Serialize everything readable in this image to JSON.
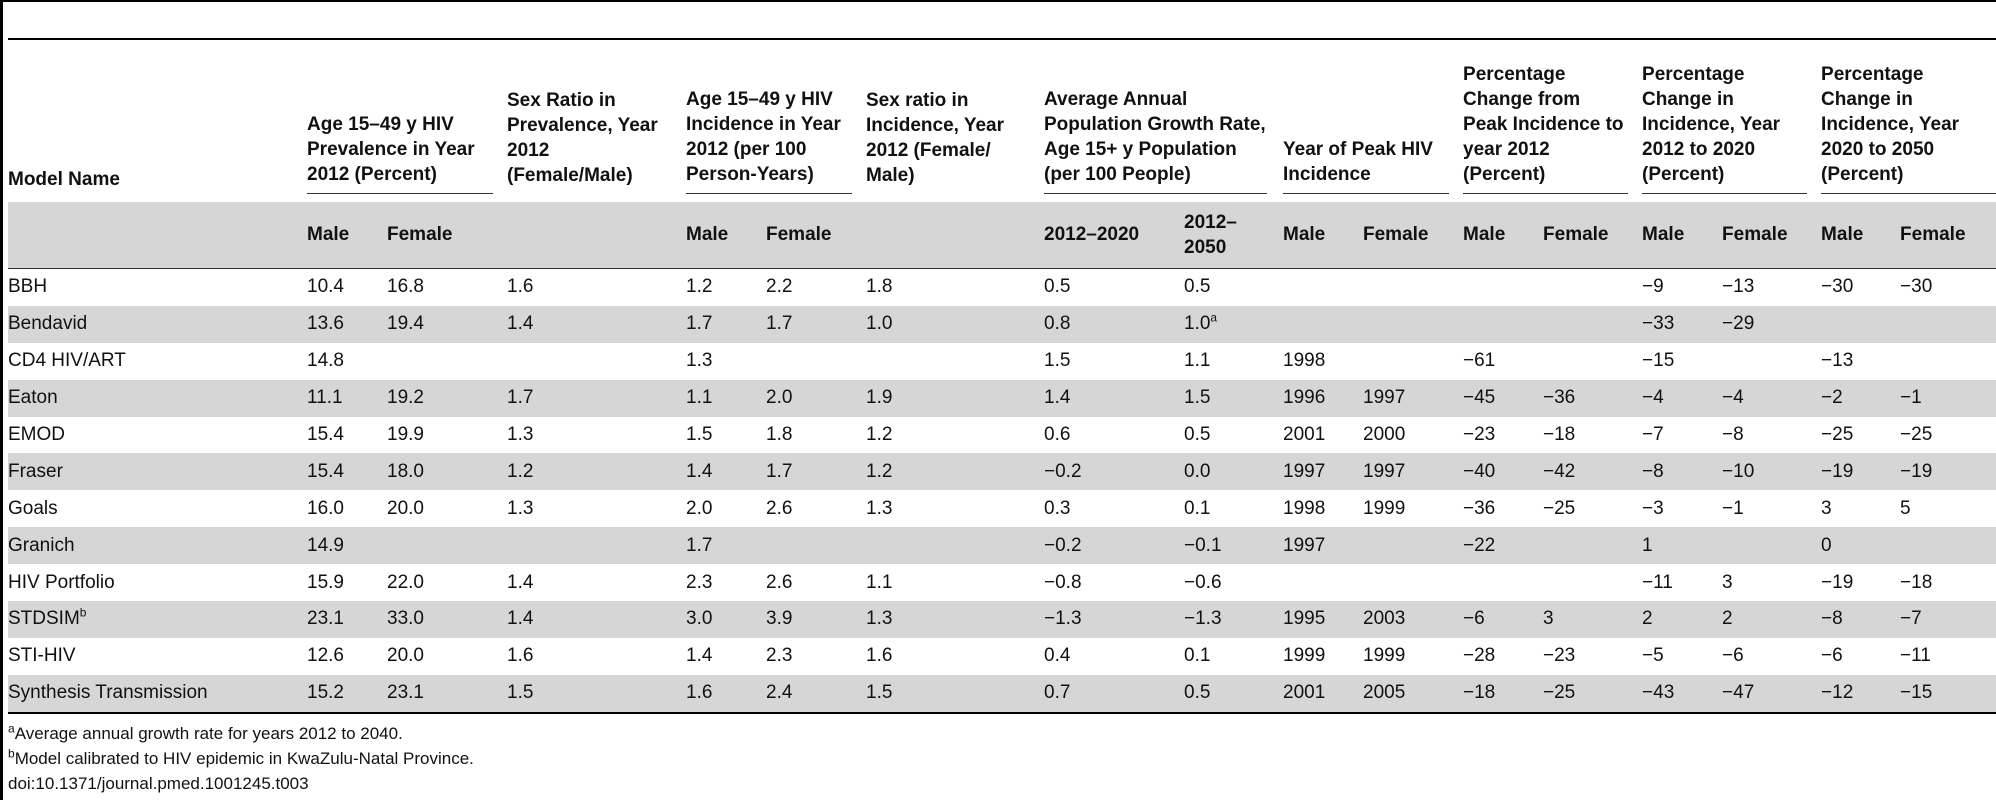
{
  "header": {
    "model_name": "Model Name",
    "prevalence": "Age 15–49 y HIV Prevalence in Year 2012 (Percent)",
    "sex_ratio_prev": "Sex Ratio in Prevalence, Year 2012 (Female/Male)",
    "incidence": "Age 15–49 y HIV Incidence in Year 2012 (per 100 Person-Years)",
    "sex_ratio_inc": "Sex ratio in Incidence, Year 2012 (Female/ Male)",
    "growth": "Average Annual Population Growth Rate, Age 15+ y Population (per 100 People)",
    "peak_year": "Year of Peak HIV Incidence",
    "pct_change_peak": "Percentage Change from Peak Incidence to year 2012 (Percent)",
    "pct_change_2020": "Percentage Change in Incidence, Year 2012 to 2020 (Percent)",
    "pct_change_2050": "Percentage Change in Incidence, Year 2020 to 2050 (Percent)",
    "male": "Male",
    "female": "Female",
    "growth_2020": "2012–2020",
    "growth_2050": "2012–2050"
  },
  "rows": [
    {
      "name": "BBH",
      "name_sup": "",
      "pm": "10.4",
      "pf": "16.8",
      "sr": "1.6",
      "im": "1.2",
      "if": "2.2",
      "isr": "1.8",
      "g1": "0.5",
      "g2": "0.5",
      "g2_sup": "",
      "ym": "",
      "yf": "",
      "cm": "",
      "cf": "",
      "c20m": "−9",
      "c20f": "−13",
      "c50m": "−30",
      "c50f": "−30"
    },
    {
      "name": "Bendavid",
      "name_sup": "",
      "pm": "13.6",
      "pf": "19.4",
      "sr": "1.4",
      "im": "1.7",
      "if": "1.7",
      "isr": "1.0",
      "g1": "0.8",
      "g2": "1.0",
      "g2_sup": "a",
      "ym": "",
      "yf": "",
      "cm": "",
      "cf": "",
      "c20m": "−33",
      "c20f": "−29",
      "c50m": "",
      "c50f": ""
    },
    {
      "name": "CD4 HIV/ART",
      "name_sup": "",
      "pm": "14.8",
      "pf": "",
      "sr": "",
      "im": "1.3",
      "if": "",
      "isr": "",
      "g1": "1.5",
      "g2": "1.1",
      "g2_sup": "",
      "ym": "1998",
      "yf": "",
      "cm": "−61",
      "cf": "",
      "c20m": "−15",
      "c20f": "",
      "c50m": "−13",
      "c50f": ""
    },
    {
      "name": "Eaton",
      "name_sup": "",
      "pm": "11.1",
      "pf": "19.2",
      "sr": "1.7",
      "im": "1.1",
      "if": "2.0",
      "isr": "1.9",
      "g1": "1.4",
      "g2": "1.5",
      "g2_sup": "",
      "ym": "1996",
      "yf": "1997",
      "cm": "−45",
      "cf": "−36",
      "c20m": "−4",
      "c20f": "−4",
      "c50m": "−2",
      "c50f": "−1"
    },
    {
      "name": "EMOD",
      "name_sup": "",
      "pm": "15.4",
      "pf": "19.9",
      "sr": "1.3",
      "im": "1.5",
      "if": "1.8",
      "isr": "1.2",
      "g1": "0.6",
      "g2": "0.5",
      "g2_sup": "",
      "ym": "2001",
      "yf": "2000",
      "cm": "−23",
      "cf": "−18",
      "c20m": "−7",
      "c20f": "−8",
      "c50m": "−25",
      "c50f": "−25"
    },
    {
      "name": "Fraser",
      "name_sup": "",
      "pm": "15.4",
      "pf": "18.0",
      "sr": "1.2",
      "im": "1.4",
      "if": "1.7",
      "isr": "1.2",
      "g1": "−0.2",
      "g2": "0.0",
      "g2_sup": "",
      "ym": "1997",
      "yf": "1997",
      "cm": "−40",
      "cf": "−42",
      "c20m": "−8",
      "c20f": "−10",
      "c50m": "−19",
      "c50f": "−19"
    },
    {
      "name": "Goals",
      "name_sup": "",
      "pm": "16.0",
      "pf": "20.0",
      "sr": "1.3",
      "im": "2.0",
      "if": "2.6",
      "isr": "1.3",
      "g1": "0.3",
      "g2": "0.1",
      "g2_sup": "",
      "ym": "1998",
      "yf": "1999",
      "cm": "−36",
      "cf": "−25",
      "c20m": "−3",
      "c20f": "−1",
      "c50m": "3",
      "c50f": "5"
    },
    {
      "name": "Granich",
      "name_sup": "",
      "pm": "14.9",
      "pf": "",
      "sr": "",
      "im": "1.7",
      "if": "",
      "isr": "",
      "g1": "−0.2",
      "g2": "−0.1",
      "g2_sup": "",
      "ym": "1997",
      "yf": "",
      "cm": "−22",
      "cf": "",
      "c20m": "1",
      "c20f": "",
      "c50m": "0",
      "c50f": ""
    },
    {
      "name": "HIV Portfolio",
      "name_sup": "",
      "pm": "15.9",
      "pf": "22.0",
      "sr": "1.4",
      "im": "2.3",
      "if": "2.6",
      "isr": "1.1",
      "g1": "−0.8",
      "g2": "−0.6",
      "g2_sup": "",
      "ym": "",
      "yf": "",
      "cm": "",
      "cf": "",
      "c20m": "−11",
      "c20f": "3",
      "c50m": "−19",
      "c50f": "−18"
    },
    {
      "name": "STDSIM",
      "name_sup": "b",
      "pm": "23.1",
      "pf": "33.0",
      "sr": "1.4",
      "im": "3.0",
      "if": "3.9",
      "isr": "1.3",
      "g1": "−1.3",
      "g2": "−1.3",
      "g2_sup": "",
      "ym": "1995",
      "yf": "2003",
      "cm": "−6",
      "cf": "3",
      "c20m": "2",
      "c20f": "2",
      "c50m": "−8",
      "c50f": "−7"
    },
    {
      "name": "STI-HIV",
      "name_sup": "",
      "pm": "12.6",
      "pf": "20.0",
      "sr": "1.6",
      "im": "1.4",
      "if": "2.3",
      "isr": "1.6",
      "g1": "0.4",
      "g2": "0.1",
      "g2_sup": "",
      "ym": "1999",
      "yf": "1999",
      "cm": "−28",
      "cf": "−23",
      "c20m": "−5",
      "c20f": "−6",
      "c50m": "−6",
      "c50f": "−11"
    },
    {
      "name": "Synthesis Transmission",
      "name_sup": "",
      "pm": "15.2",
      "pf": "23.1",
      "sr": "1.5",
      "im": "1.6",
      "if": "2.4",
      "isr": "1.5",
      "g1": "0.7",
      "g2": "0.5",
      "g2_sup": "",
      "ym": "2001",
      "yf": "2005",
      "cm": "−18",
      "cf": "−25",
      "c20m": "−43",
      "c20f": "−47",
      "c50m": "−12",
      "c50f": "−15"
    }
  ],
  "footnotes": [
    {
      "mark": "a",
      "text": "Average annual growth rate for years 2012 to 2040."
    },
    {
      "mark": "b",
      "text": "Model calibrated to HIV epidemic in KwaZulu-Natal Province."
    },
    {
      "mark": "",
      "text": "doi:10.1371/journal.pmed.1001245.t003"
    }
  ]
}
